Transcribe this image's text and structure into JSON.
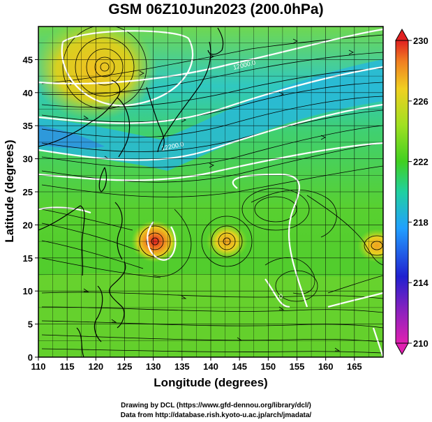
{
  "title": "GSM 06Z10Jun2023 (200.0hPa)",
  "xlabel": "Longitude (degrees)",
  "ylabel": "Latitude  (degrees)",
  "credit_line1": "Drawing by DCL (https://www.gfd-dennou.org/library/dcl/)",
  "credit_line2": "Data from http://database.rish.kyoto-u.ac.jp/arch/jmadata/",
  "contour_labels": [
    "12000.0",
    "12200.0",
    "0"
  ],
  "chart_data": {
    "type": "heatmap",
    "title": "GSM 06Z10Jun2023 (200.0hPa)",
    "xlabel": "Longitude (degrees)",
    "ylabel": "Latitude  (degrees)",
    "xlim": [
      110,
      170
    ],
    "ylim": [
      0,
      50
    ],
    "x_ticks": [
      110,
      115,
      120,
      125,
      130,
      135,
      140,
      145,
      150,
      155,
      160,
      165
    ],
    "y_ticks": [
      0,
      5,
      10,
      15,
      20,
      25,
      30,
      35,
      40,
      45
    ],
    "colorbar": {
      "min": 210,
      "max": 230,
      "ticks": [
        210,
        214,
        218,
        222,
        226,
        230
      ],
      "colors": [
        "#e020b0",
        "#2020d0",
        "#20a0ff",
        "#20d0a0",
        "#40d020",
        "#a0e020",
        "#f0d020",
        "#f08020",
        "#e02020"
      ]
    },
    "overlays": [
      "streamlines",
      "height contours",
      "coastlines",
      "lat-lon grid"
    ],
    "features": [
      {
        "kind": "warm anticyclone",
        "lon": 121,
        "lat": 45
      },
      {
        "kind": "warm vortex",
        "lon": 130,
        "lat": 19.5
      },
      {
        "kind": "warm vortex",
        "lon": 142.5,
        "lat": 19.5
      },
      {
        "kind": "warm patch",
        "lon": 168,
        "lat": 18.5
      }
    ]
  }
}
